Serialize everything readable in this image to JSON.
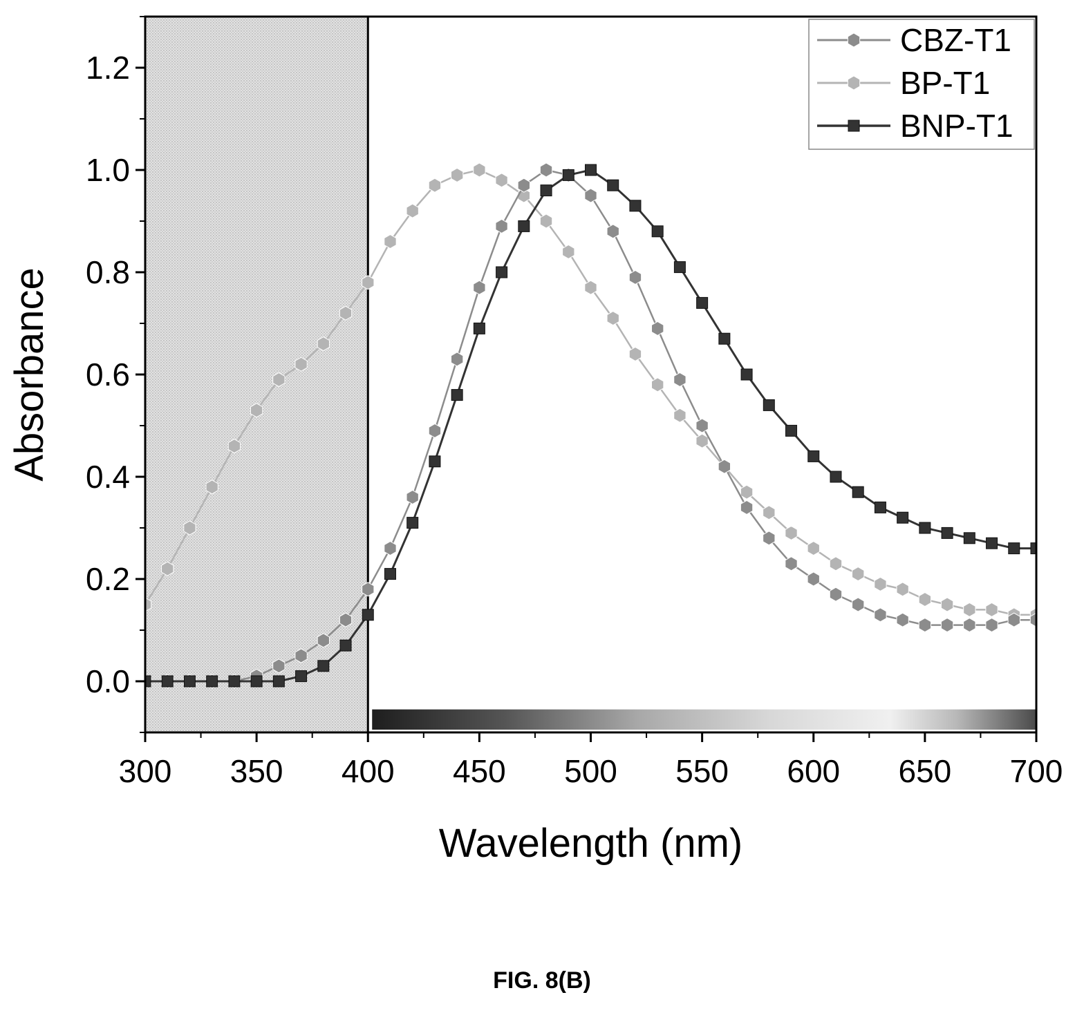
{
  "figure_caption": "FIG. 8(B)",
  "chart_data": {
    "type": "line",
    "title": "",
    "xlabel": "Wavelength (nm)",
    "ylabel": "Absorbance",
    "xlim": [
      300,
      700
    ],
    "ylim": [
      -0.1,
      1.3
    ],
    "x_ticks": [
      300,
      350,
      400,
      450,
      500,
      550,
      600,
      650,
      700
    ],
    "x_tick_labels": [
      "300",
      "350",
      "400",
      "450",
      "500",
      "550",
      "600",
      "650",
      "700"
    ],
    "y_ticks": [
      0.0,
      0.2,
      0.4,
      0.6,
      0.8,
      1.0,
      1.2
    ],
    "y_tick_labels": [
      "0.0",
      "0.2",
      "0.4",
      "0.6",
      "0.8",
      "1.0",
      "1.2"
    ],
    "grid": false,
    "legend_position": "top-right",
    "shaded_region": {
      "x_range": [
        300,
        400
      ],
      "color": "#dcdcdc"
    },
    "marker_line": {
      "x": 400
    },
    "spectrum_bar": {
      "x_range": [
        400,
        700
      ]
    },
    "x": [
      300,
      310,
      320,
      330,
      340,
      350,
      360,
      370,
      380,
      390,
      400,
      410,
      420,
      430,
      440,
      450,
      460,
      470,
      480,
      490,
      500,
      510,
      520,
      530,
      540,
      550,
      560,
      570,
      580,
      590,
      600,
      610,
      620,
      630,
      640,
      650,
      660,
      670,
      680,
      690,
      700
    ],
    "series": [
      {
        "name": "CBZ-T1",
        "color": "#8c8c8c",
        "marker": "hexagon",
        "values": [
          0.0,
          0.0,
          0.0,
          0.0,
          0.0,
          0.01,
          0.03,
          0.05,
          0.08,
          0.12,
          0.18,
          0.26,
          0.36,
          0.49,
          0.63,
          0.77,
          0.89,
          0.97,
          1.0,
          0.99,
          0.95,
          0.88,
          0.79,
          0.69,
          0.59,
          0.5,
          0.42,
          0.34,
          0.28,
          0.23,
          0.2,
          0.17,
          0.15,
          0.13,
          0.12,
          0.11,
          0.11,
          0.11,
          0.11,
          0.12,
          0.12
        ]
      },
      {
        "name": "BP-T1",
        "color": "#b4b4b4",
        "marker": "hexagon",
        "values": [
          0.15,
          0.22,
          0.3,
          0.38,
          0.46,
          0.53,
          0.59,
          0.62,
          0.66,
          0.72,
          0.78,
          0.86,
          0.92,
          0.97,
          0.99,
          1.0,
          0.98,
          0.95,
          0.9,
          0.84,
          0.77,
          0.71,
          0.64,
          0.58,
          0.52,
          0.47,
          0.42,
          0.37,
          0.33,
          0.29,
          0.26,
          0.23,
          0.21,
          0.19,
          0.18,
          0.16,
          0.15,
          0.14,
          0.14,
          0.13,
          0.13
        ]
      },
      {
        "name": "BNP-T1",
        "color": "#333333",
        "marker": "square",
        "values": [
          0.0,
          0.0,
          0.0,
          0.0,
          0.0,
          0.0,
          0.0,
          0.01,
          0.03,
          0.07,
          0.13,
          0.21,
          0.31,
          0.43,
          0.56,
          0.69,
          0.8,
          0.89,
          0.96,
          0.99,
          1.0,
          0.97,
          0.93,
          0.88,
          0.81,
          0.74,
          0.67,
          0.6,
          0.54,
          0.49,
          0.44,
          0.4,
          0.37,
          0.34,
          0.32,
          0.3,
          0.29,
          0.28,
          0.27,
          0.26,
          0.26
        ]
      }
    ]
  }
}
